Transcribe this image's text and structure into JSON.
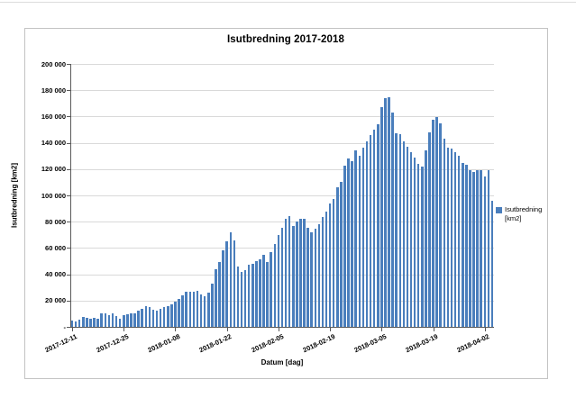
{
  "chart": {
    "title": "Isutbredning 2017-2018",
    "y_axis": {
      "title": "Isutbredning [km2]",
      "tick_labels": [
        "200 000",
        "180 000",
        "160 000",
        "140 000",
        "120 000",
        "100 000",
        "80 000",
        "60 000",
        "40 000",
        "20 000",
        "-"
      ]
    },
    "x_axis": {
      "title": "Datum [dag]"
    },
    "legend": {
      "label": "Isutbredning [km2]",
      "swatch_color": "#4a7ebc"
    }
  },
  "chart_data": {
    "type": "bar",
    "title": "Isutbredning 2017-2018",
    "xlabel": "Datum [dag]",
    "ylabel": "Isutbredning [km2]",
    "ylim": [
      0,
      200000
    ],
    "y_tick_step": 20000,
    "grid": true,
    "legend_position": "right",
    "legend": [
      "Isutbredning [km2]"
    ],
    "bar_color": "#4a7ebc",
    "x_tick_labels": [
      "2017-12-11",
      "2017-12-25",
      "2018-01-08",
      "2018-01-22",
      "2018-02-05",
      "2018-02-19",
      "2018-03-05",
      "2018-03-19",
      "2018-04-02"
    ],
    "x_tick_positions": [
      0,
      14,
      28,
      42,
      56,
      70,
      84,
      98,
      112
    ],
    "x": [
      "2017-12-11",
      "2017-12-12",
      "2017-12-13",
      "2017-12-14",
      "2017-12-15",
      "2017-12-16",
      "2017-12-17",
      "2017-12-18",
      "2017-12-19",
      "2017-12-20",
      "2017-12-21",
      "2017-12-22",
      "2017-12-23",
      "2017-12-24",
      "2017-12-25",
      "2017-12-26",
      "2017-12-27",
      "2017-12-28",
      "2017-12-29",
      "2017-12-30",
      "2017-12-31",
      "2018-01-01",
      "2018-01-02",
      "2018-01-03",
      "2018-01-04",
      "2018-01-05",
      "2018-01-06",
      "2018-01-07",
      "2018-01-08",
      "2018-01-09",
      "2018-01-10",
      "2018-01-11",
      "2018-01-12",
      "2018-01-13",
      "2018-01-14",
      "2018-01-15",
      "2018-01-16",
      "2018-01-17",
      "2018-01-18",
      "2018-01-19",
      "2018-01-20",
      "2018-01-21",
      "2018-01-22",
      "2018-01-23",
      "2018-01-24",
      "2018-01-25",
      "2018-01-26",
      "2018-01-27",
      "2018-01-28",
      "2018-01-29",
      "2018-01-30",
      "2018-01-31",
      "2018-02-01",
      "2018-02-02",
      "2018-02-03",
      "2018-02-04",
      "2018-02-05",
      "2018-02-06",
      "2018-02-07",
      "2018-02-08",
      "2018-02-09",
      "2018-02-10",
      "2018-02-11",
      "2018-02-12",
      "2018-02-13",
      "2018-02-14",
      "2018-02-15",
      "2018-02-16",
      "2018-02-17",
      "2018-02-18",
      "2018-02-19",
      "2018-02-20",
      "2018-02-21",
      "2018-02-22",
      "2018-02-23",
      "2018-02-24",
      "2018-02-25",
      "2018-02-26",
      "2018-02-27",
      "2018-02-28",
      "2018-03-01",
      "2018-03-02",
      "2018-03-03",
      "2018-03-04",
      "2018-03-05",
      "2018-03-06",
      "2018-03-07",
      "2018-03-08",
      "2018-03-09",
      "2018-03-10",
      "2018-03-11",
      "2018-03-12",
      "2018-03-13",
      "2018-03-14",
      "2018-03-15",
      "2018-03-16",
      "2018-03-17",
      "2018-03-18",
      "2018-03-19",
      "2018-03-20",
      "2018-03-21",
      "2018-03-22",
      "2018-03-23",
      "2018-03-24",
      "2018-03-25",
      "2018-03-26",
      "2018-03-27",
      "2018-03-28",
      "2018-03-29",
      "2018-03-30",
      "2018-03-31",
      "2018-04-01",
      "2018-04-02",
      "2018-04-03",
      "2018-04-04"
    ],
    "values": [
      4500,
      4000,
      5500,
      7500,
      7000,
      6500,
      7000,
      6000,
      10000,
      10000,
      9000,
      10000,
      8000,
      6000,
      9000,
      9500,
      10500,
      10000,
      12000,
      13500,
      15500,
      15000,
      13000,
      12500,
      13500,
      15000,
      16000,
      17000,
      19000,
      21000,
      24000,
      26500,
      27000,
      26500,
      27500,
      25000,
      23000,
      26000,
      33000,
      44000,
      49000,
      58000,
      65000,
      72000,
      66000,
      46000,
      42000,
      43000,
      47000,
      48000,
      50000,
      51500,
      55000,
      49000,
      57000,
      63000,
      70000,
      75500,
      82500,
      84000,
      77000,
      80000,
      82000,
      82000,
      75500,
      72000,
      74500,
      78000,
      83500,
      88000,
      94000,
      97000,
      106500,
      110000,
      122500,
      128000,
      126000,
      134000,
      130000,
      136000,
      141000,
      146000,
      150000,
      154000,
      167000,
      174000,
      174500,
      163000,
      147000,
      146500,
      141000,
      137000,
      133000,
      129000,
      124000,
      122000,
      134000,
      148000,
      157500,
      159500,
      155000,
      143000,
      136000,
      135500,
      133000,
      130000,
      125000,
      123000,
      119000,
      118000,
      119500,
      119000,
      114500,
      119000,
      96000
    ]
  }
}
